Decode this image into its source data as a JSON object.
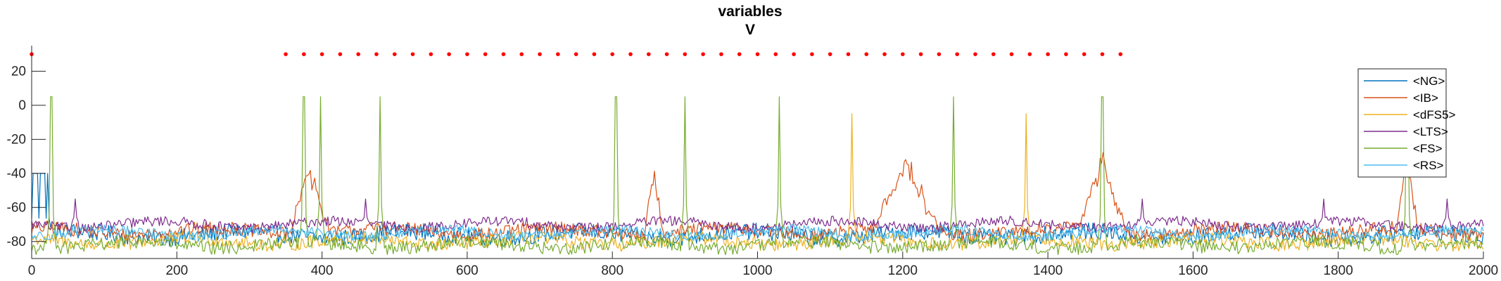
{
  "chart_data": {
    "type": "line",
    "title": [
      "variables",
      "V"
    ],
    "xlabel": "",
    "ylabel": "",
    "xlim": [
      0,
      2000
    ],
    "ylim": [
      -90,
      35
    ],
    "x_ticks": [
      0,
      200,
      400,
      600,
      800,
      1000,
      1200,
      1400,
      1600,
      1800,
      2000
    ],
    "y_ticks": [
      20,
      0,
      -20,
      -40,
      -60,
      -80
    ],
    "grid": false,
    "legend_position": "top-right",
    "series": [
      {
        "name": "<NG>",
        "color": "#0072BD",
        "baseline": -76,
        "noise": 5,
        "spike_x": [
          2,
          5,
          8,
          12,
          15,
          18,
          22
        ],
        "spike_peak": -40,
        "burst_x": [],
        "burst_level": -60
      },
      {
        "name": "<IB>",
        "color": "#D95319",
        "baseline": -74,
        "noise": 4,
        "spike_x": [],
        "spike_peak": -60,
        "burst_x": [
          [
            355,
            410
          ],
          [
            845,
            870
          ],
          [
            1160,
            1250
          ],
          [
            1440,
            1510
          ],
          [
            1880,
            1910
          ]
        ],
        "burst_level": -35
      },
      {
        "name": "<dFS5>",
        "color": "#EDB120",
        "baseline": -80,
        "noise": 4,
        "spike_x": [
          1130,
          1370
        ],
        "spike_peak": -5,
        "burst_x": [],
        "burst_level": -60
      },
      {
        "name": "<LTS>",
        "color": "#7E2F8E",
        "baseline": -70,
        "noise": 3,
        "spike_x": [
          60,
          460,
          1530,
          1780,
          1950
        ],
        "spike_peak": -55,
        "burst_x": [],
        "burst_level": -60
      },
      {
        "name": "<FS>",
        "color": "#77AC30",
        "baseline": -82,
        "noise": 4,
        "spike_x": [
          27,
          375,
          398,
          480,
          805,
          900,
          1030,
          1270,
          1475,
          1895
        ],
        "spike_peak": 5,
        "burst_x": [],
        "burst_level": -60
      },
      {
        "name": "<RS>",
        "color": "#4DBEEE",
        "baseline": -75,
        "noise": 3,
        "spike_x": [],
        "spike_peak": -60,
        "burst_x": [],
        "burst_level": -60
      }
    ],
    "markers": {
      "color": "#FF0000",
      "y": 30,
      "x": [
        0,
        350,
        375,
        400,
        425,
        450,
        475,
        500,
        525,
        550,
        575,
        600,
        625,
        650,
        675,
        700,
        725,
        750,
        775,
        800,
        825,
        850,
        875,
        900,
        925,
        950,
        975,
        1000,
        1025,
        1050,
        1075,
        1100,
        1125,
        1150,
        1175,
        1200,
        1225,
        1250,
        1275,
        1300,
        1325,
        1350,
        1375,
        1400,
        1425,
        1450,
        1475,
        1500
      ]
    }
  }
}
